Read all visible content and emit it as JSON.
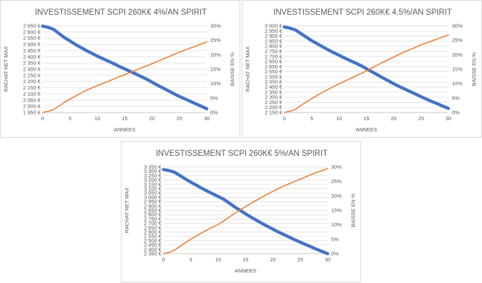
{
  "chart_data": [
    {
      "type": "line",
      "title": "INVESTISSEMENT SCPI 260K€ 4%/AN SPIRIT",
      "xlabel": "ANNEES",
      "ylabel": "RACHAT NET MAX",
      "y2label": "BAISSE EN %",
      "x_ticks": [
        "0",
        "5",
        "10",
        "15",
        "20",
        "25",
        "30"
      ],
      "xlim": [
        0,
        30
      ],
      "y_ticks": [
        "1 950 €",
        "2 000 €",
        "2 050 €",
        "2 100 €",
        "2 150 €",
        "2 200 €",
        "2 250 €",
        "2 300 €",
        "2 350 €",
        "2 400 €",
        "2 450 €",
        "2 500 €",
        "2 550 €",
        "2 600 €",
        "2 650 €"
      ],
      "ylim": [
        1950,
        2650
      ],
      "y2_ticks": [
        "0%",
        "5%",
        "10%",
        "15%",
        "20%",
        "25%",
        "30%"
      ],
      "y2lim": [
        0,
        30
      ],
      "grid": true,
      "series": [
        {
          "axis": "left",
          "color": "#4472c4",
          "x": [
            0,
            1,
            2,
            3,
            4,
            5,
            6,
            7,
            8,
            9,
            10,
            11,
            12,
            13,
            14,
            15,
            16,
            17,
            18,
            19,
            20,
            21,
            22,
            23,
            24,
            25,
            26,
            27,
            28,
            29,
            30
          ],
          "values": [
            2648,
            2638,
            2622,
            2588,
            2555,
            2528,
            2500,
            2475,
            2450,
            2428,
            2405,
            2385,
            2365,
            2345,
            2322,
            2302,
            2282,
            2262,
            2240,
            2220,
            2195,
            2170,
            2148,
            2125,
            2102,
            2080,
            2060,
            2040,
            2020,
            2000,
            1980
          ]
        },
        {
          "axis": "right",
          "color": "#ed7d31",
          "x": [
            0,
            1,
            2,
            3,
            4,
            5,
            6,
            7,
            8,
            9,
            10,
            11,
            12,
            13,
            14,
            15,
            16,
            17,
            18,
            19,
            20,
            21,
            22,
            23,
            24,
            25,
            26,
            27,
            28,
            29,
            30
          ],
          "values": [
            0,
            0.4,
            1.0,
            2.3,
            3.5,
            4.6,
            5.7,
            6.7,
            7.7,
            8.5,
            9.3,
            10.1,
            10.8,
            11.6,
            12.4,
            13.1,
            13.9,
            14.6,
            15.4,
            16.1,
            16.9,
            17.7,
            18.5,
            19.3,
            20.1,
            20.9,
            21.6,
            22.3,
            23.0,
            23.7,
            24.5
          ]
        }
      ]
    },
    {
      "type": "line",
      "title": "INVESTISSEMENT SCPI 260K€ 4,5%/AN SPIRIT",
      "xlabel": "ANNEES",
      "ylabel": "RACHAT NET MAX",
      "y2label": "BAISSE EN %",
      "x_ticks": [
        "0",
        "5",
        "10",
        "15",
        "20",
        "25",
        "30"
      ],
      "xlim": [
        0,
        30
      ],
      "y_ticks": [
        "2 150 €",
        "2 200 €",
        "2 250 €",
        "2 300 €",
        "2 350 €",
        "2 400 €",
        "2 450 €",
        "2 500 €",
        "2 550 €",
        "2 600 €",
        "2 650 €",
        "2 700 €",
        "2 750 €",
        "2 800 €",
        "2 850 €",
        "2 900 €",
        "2 950 €",
        "3 000 €"
      ],
      "ylim": [
        2150,
        3000
      ],
      "y2_ticks": [
        "0%",
        "5%",
        "10%",
        "15%",
        "20%",
        "25%",
        "30%"
      ],
      "y2lim": [
        0,
        30
      ],
      "grid": true,
      "series": [
        {
          "axis": "left",
          "color": "#4472c4",
          "x": [
            0,
            1,
            2,
            3,
            4,
            5,
            6,
            7,
            8,
            9,
            10,
            11,
            12,
            13,
            14,
            15,
            16,
            17,
            18,
            19,
            20,
            21,
            22,
            23,
            24,
            25,
            26,
            27,
            28,
            29,
            30
          ],
          "values": [
            2990,
            2978,
            2960,
            2925,
            2890,
            2855,
            2825,
            2795,
            2765,
            2738,
            2712,
            2685,
            2660,
            2635,
            2610,
            2580,
            2550,
            2520,
            2490,
            2462,
            2432,
            2405,
            2380,
            2355,
            2330,
            2305,
            2280,
            2257,
            2235,
            2212,
            2190
          ]
        },
        {
          "axis": "right",
          "color": "#ed7d31",
          "x": [
            0,
            1,
            2,
            3,
            4,
            5,
            6,
            7,
            8,
            9,
            10,
            11,
            12,
            13,
            14,
            15,
            16,
            17,
            18,
            19,
            20,
            21,
            22,
            23,
            24,
            25,
            26,
            27,
            28,
            29,
            30
          ],
          "values": [
            0,
            0.4,
            1.0,
            2.4,
            3.6,
            4.8,
            5.9,
            7.0,
            8.0,
            9.0,
            9.9,
            10.8,
            11.7,
            12.6,
            13.5,
            14.4,
            15.4,
            16.4,
            17.4,
            18.3,
            19.2,
            20.1,
            21.0,
            21.8,
            22.6,
            23.4,
            24.1,
            24.8,
            25.5,
            26.2,
            26.8
          ]
        }
      ]
    },
    {
      "type": "line",
      "title": "INVESTISSEMENT SCPI 260K€ 5%/AN SPIRIT",
      "xlabel": "ANNEES",
      "ylabel": "RACHAT NET MAX",
      "y2label": "BAISSE EN %",
      "x_ticks": [
        "0",
        "5",
        "10",
        "15",
        "20",
        "25",
        "30"
      ],
      "xlim": [
        0,
        30
      ],
      "y_ticks": [
        "2 350 €",
        "2 400 €",
        "2 450 €",
        "2 500 €",
        "2 550 €",
        "2 600 €",
        "2 650 €",
        "2 700 €",
        "2 750 €",
        "2 800 €",
        "2 850 €",
        "2 900 €",
        "2 950 €",
        "3 000 €",
        "3 050 €",
        "3 100 €",
        "3 150 €",
        "3 200 €",
        "3 250 €",
        "3 300 €",
        "3 350 €"
      ],
      "ylim": [
        2350,
        3350
      ],
      "y2_ticks": [
        "0%",
        "5%",
        "10%",
        "15%",
        "20%",
        "25%",
        "30%"
      ],
      "y2lim": [
        0,
        30
      ],
      "grid": true,
      "series": [
        {
          "axis": "left",
          "color": "#4472c4",
          "x": [
            0,
            1,
            2,
            3,
            4,
            5,
            6,
            7,
            8,
            9,
            10,
            11,
            12,
            13,
            14,
            15,
            16,
            17,
            18,
            19,
            20,
            21,
            22,
            23,
            24,
            25,
            26,
            27,
            28,
            29,
            30
          ],
          "values": [
            3320,
            3310,
            3290,
            3252,
            3212,
            3175,
            3140,
            3105,
            3072,
            3040,
            3010,
            2978,
            2935,
            2890,
            2850,
            2810,
            2772,
            2735,
            2700,
            2665,
            2632,
            2600,
            2570,
            2540,
            2510,
            2482,
            2455,
            2428,
            2400,
            2375,
            2350
          ]
        },
        {
          "axis": "right",
          "color": "#ed7d31",
          "x": [
            0,
            1,
            2,
            3,
            4,
            5,
            6,
            7,
            8,
            9,
            10,
            11,
            12,
            13,
            14,
            15,
            16,
            17,
            18,
            19,
            20,
            21,
            22,
            23,
            24,
            25,
            26,
            27,
            28,
            29,
            30
          ],
          "values": [
            0,
            0.4,
            1.2,
            2.5,
            3.8,
            5.0,
            6.1,
            7.2,
            8.2,
            9.2,
            10.1,
            11.3,
            12.6,
            13.9,
            15.1,
            16.3,
            17.4,
            18.5,
            19.6,
            20.6,
            21.6,
            22.5,
            23.4,
            24.2,
            25.0,
            25.8,
            26.6,
            27.4,
            28.1,
            28.8,
            29.5
          ]
        }
      ]
    }
  ]
}
